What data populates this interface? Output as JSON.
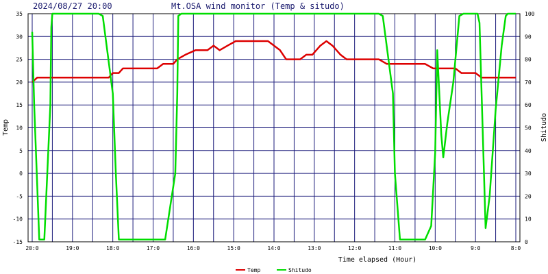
{
  "header": {
    "timestamp": "2024/08/27 20:00",
    "title": "Mt.OSA wind monitor (Temp & situdo)"
  },
  "chart_data": {
    "type": "line",
    "title": "Mt.OSA wind monitor (Temp & situdo)",
    "xlabel": "Time elapsed (Hour)",
    "ylabel_left": "Temp",
    "ylabel_right": "Shitudo",
    "xlim": [
      0,
      24
    ],
    "ylim_left": [
      -15,
      35
    ],
    "ylim_right": [
      0,
      100
    ],
    "yticks_left": [
      -15,
      -10,
      -5,
      0,
      5,
      10,
      15,
      20,
      25,
      30,
      35
    ],
    "yticks_right": [
      0,
      10,
      20,
      30,
      40,
      50,
      60,
      70,
      80,
      90,
      100
    ],
    "xticks": [
      {
        "x": 0,
        "label": "20:0"
      },
      {
        "x": 2,
        "label": "19:0"
      },
      {
        "x": 4,
        "label": "18:0"
      },
      {
        "x": 6,
        "label": "17:0"
      },
      {
        "x": 8,
        "label": "16:0"
      },
      {
        "x": 10,
        "label": "15:0"
      },
      {
        "x": 12,
        "label": "14:0"
      },
      {
        "x": 14,
        "label": "13:0"
      },
      {
        "x": 16,
        "label": "12:0"
      },
      {
        "x": 18,
        "label": "11:0"
      },
      {
        "x": 20,
        "label": "10:0"
      },
      {
        "x": 22,
        "label": "9:0"
      },
      {
        "x": 24,
        "label": "8:0"
      }
    ],
    "x_gridlines": [
      0,
      1,
      2,
      3,
      4,
      5,
      6,
      7,
      8,
      9,
      10,
      11,
      12,
      13,
      14,
      15,
      16,
      17,
      18,
      19,
      20,
      21,
      22,
      23,
      24
    ],
    "grid": true,
    "legend_position": "bottom-center",
    "series": [
      {
        "name": "Temp",
        "axis": "left",
        "color": "#dd0000",
        "points": [
          [
            0,
            20
          ],
          [
            0.25,
            21
          ],
          [
            0.5,
            21
          ],
          [
            1,
            21
          ],
          [
            2,
            21
          ],
          [
            3,
            21
          ],
          [
            3.5,
            21
          ],
          [
            3.8,
            21
          ],
          [
            4,
            22
          ],
          [
            4.3,
            22
          ],
          [
            4.5,
            23
          ],
          [
            5,
            23
          ],
          [
            5.5,
            23
          ],
          [
            6.2,
            23
          ],
          [
            6.5,
            24
          ],
          [
            7,
            24
          ],
          [
            7.2,
            25
          ],
          [
            7.6,
            26
          ],
          [
            8.1,
            27
          ],
          [
            8.7,
            27
          ],
          [
            9,
            28
          ],
          [
            9.3,
            27
          ],
          [
            9.7,
            28
          ],
          [
            10.1,
            29
          ],
          [
            11,
            29
          ],
          [
            11.7,
            29
          ],
          [
            12.3,
            27
          ],
          [
            12.6,
            25
          ],
          [
            13.3,
            25
          ],
          [
            13.6,
            26
          ],
          [
            13.9,
            26
          ],
          [
            14.3,
            28
          ],
          [
            14.6,
            29
          ],
          [
            14.9,
            28
          ],
          [
            15.3,
            26
          ],
          [
            15.6,
            25
          ],
          [
            16,
            25
          ],
          [
            16.6,
            25
          ],
          [
            17.2,
            25
          ],
          [
            17.6,
            24
          ],
          [
            18,
            24
          ],
          [
            19,
            24
          ],
          [
            19.5,
            24
          ],
          [
            19.9,
            23
          ],
          [
            20,
            23
          ],
          [
            21,
            23
          ],
          [
            21.3,
            22
          ],
          [
            22,
            22
          ],
          [
            22.3,
            21
          ],
          [
            23,
            21
          ],
          [
            24,
            21
          ]
        ]
      },
      {
        "name": "Shitudo",
        "axis": "right",
        "color": "#00dd00",
        "points": [
          [
            0,
            92
          ],
          [
            0.1,
            60
          ],
          [
            0.35,
            1
          ],
          [
            0.6,
            1
          ],
          [
            0.9,
            60
          ],
          [
            0.95,
            94
          ],
          [
            1,
            100
          ],
          [
            2,
            100
          ],
          [
            3.3,
            100
          ],
          [
            3.5,
            99
          ],
          [
            4,
            65
          ],
          [
            4.15,
            30
          ],
          [
            4.3,
            1
          ],
          [
            5,
            1
          ],
          [
            6,
            1
          ],
          [
            6.6,
            1
          ],
          [
            7.1,
            30
          ],
          [
            7.2,
            65
          ],
          [
            7.25,
            99
          ],
          [
            7.4,
            100
          ],
          [
            9,
            100
          ],
          [
            12,
            100
          ],
          [
            15,
            100
          ],
          [
            17.2,
            100
          ],
          [
            17.4,
            99
          ],
          [
            17.9,
            65
          ],
          [
            18,
            30
          ],
          [
            18.25,
            1
          ],
          [
            19,
            1
          ],
          [
            19.5,
            1
          ],
          [
            19.8,
            7
          ],
          [
            20,
            39
          ],
          [
            20.1,
            84
          ],
          [
            20.3,
            47
          ],
          [
            20.4,
            37
          ],
          [
            20.6,
            52
          ],
          [
            20.9,
            70
          ],
          [
            21.2,
            99
          ],
          [
            21.4,
            100
          ],
          [
            22.1,
            100
          ],
          [
            22.2,
            96
          ],
          [
            22.5,
            6
          ],
          [
            22.7,
            20
          ],
          [
            23,
            58
          ],
          [
            23.3,
            86
          ],
          [
            23.5,
            99
          ],
          [
            23.6,
            100
          ],
          [
            24,
            100
          ]
        ]
      }
    ]
  }
}
